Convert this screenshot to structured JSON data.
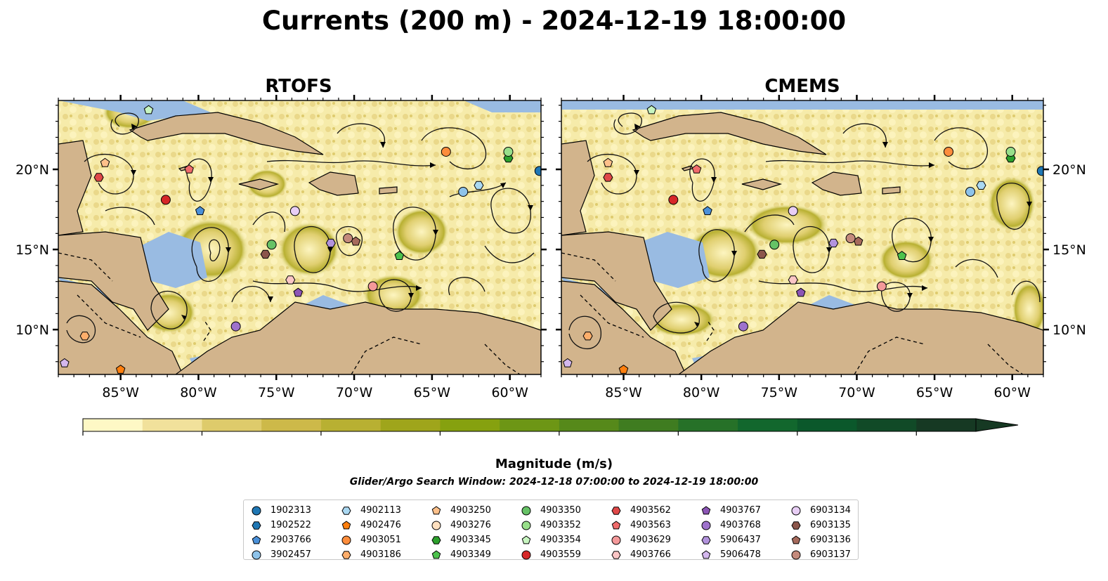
{
  "title": "Currents (200 m) - 2024-12-19 18:00:00",
  "panels": [
    {
      "title": "RTOFS"
    },
    {
      "title": "CMEMS"
    }
  ],
  "lon_ticks": [
    "85°W",
    "80°W",
    "75°W",
    "70°W",
    "65°W",
    "60°W"
  ],
  "lat_ticks": [
    "20°N",
    "15°N",
    "10°N"
  ],
  "extent": {
    "lon_min": -89,
    "lon_max": -58,
    "lat_min": 7.2,
    "lat_max": 24.3
  },
  "colors": {
    "ocean_low": "#fdf5c0",
    "land": "#d2b48c",
    "shelf": "#99bbe2"
  },
  "colorbar": {
    "label": "Magnitude (m/s)",
    "ticks": [
      "0.0",
      "0.2",
      "0.4",
      "0.6",
      "0.8",
      "1.0",
      "1.2",
      "1.4"
    ],
    "min": 0,
    "max": 1.5,
    "step": 0.1,
    "colors": [
      "#fef8c5",
      "#f1e19b",
      "#decb6b",
      "#cdb949",
      "#b8b032",
      "#9fa51b",
      "#86a10f",
      "#6d9615",
      "#56891a",
      "#3f7c20",
      "#267128",
      "#12672d",
      "#0b582b",
      "#114a27",
      "#163923"
    ]
  },
  "search_window": "Glider/Argo Search Window: 2024-12-18 07:00:00 to 2024-12-19 18:00:00",
  "floats": [
    {
      "id": "1902313",
      "marker": "circle",
      "color": "#1f77b4",
      "rtofs": [
        -58.1,
        19.9
      ],
      "cmems": [
        -58.1,
        19.9
      ]
    },
    {
      "id": "1902522",
      "marker": "hexagon",
      "color": "#1f77b4"
    },
    {
      "id": "2903766",
      "marker": "pentagon",
      "color": "#4a90d9",
      "rtofs": [
        -79.9,
        17.4
      ],
      "cmems": [
        -79.6,
        17.4
      ]
    },
    {
      "id": "3902457",
      "marker": "circle",
      "color": "#8ec3ea",
      "rtofs": [
        -63.0,
        18.6
      ],
      "cmems": [
        -62.7,
        18.6
      ]
    },
    {
      "id": "4902113",
      "marker": "hexagon",
      "color": "#aad8f2",
      "rtofs": [
        -62.0,
        19.0
      ],
      "cmems": [
        -62.0,
        19.0
      ]
    },
    {
      "id": "4902476",
      "marker": "pentagon",
      "color": "#ff7f0e",
      "rtofs": [
        -85.0,
        7.5
      ],
      "cmems": [
        -85.0,
        7.5
      ]
    },
    {
      "id": "4903051",
      "marker": "circle",
      "color": "#fd8d3c",
      "rtofs": [
        -64.1,
        21.1
      ],
      "cmems": [
        -64.1,
        21.1
      ]
    },
    {
      "id": "4903186",
      "marker": "hexagon",
      "color": "#fdae6b",
      "rtofs": [
        -87.3,
        9.6
      ],
      "cmems": [
        -87.3,
        9.6
      ]
    },
    {
      "id": "4903250",
      "marker": "pentagon",
      "color": "#fdc08a",
      "rtofs": [
        -86.0,
        20.4
      ],
      "cmems": [
        -86.0,
        20.4
      ]
    },
    {
      "id": "4903276",
      "marker": "circle",
      "color": "#fee0c0"
    },
    {
      "id": "4903345",
      "marker": "hexagon",
      "color": "#2ca02c",
      "rtofs": [
        -60.1,
        20.7
      ],
      "cmems": [
        -60.1,
        20.7
      ]
    },
    {
      "id": "4903349",
      "marker": "pentagon",
      "color": "#4cc24c",
      "rtofs": [
        -67.1,
        14.6
      ],
      "cmems": [
        -67.1,
        14.6
      ]
    },
    {
      "id": "4903350",
      "marker": "circle",
      "color": "#66c266",
      "rtofs": [
        -75.3,
        15.3
      ],
      "cmems": [
        -75.3,
        15.3
      ]
    },
    {
      "id": "4903352",
      "marker": "circle",
      "color": "#98df8a",
      "rtofs": [
        -60.1,
        21.1
      ],
      "cmems": [
        -60.1,
        21.1
      ]
    },
    {
      "id": "4903354",
      "marker": "pentagon",
      "color": "#c7f5c0",
      "rtofs": [
        -83.2,
        23.7
      ],
      "cmems": [
        -83.2,
        23.7
      ]
    },
    {
      "id": "4903559",
      "marker": "circle",
      "color": "#d62728",
      "rtofs": [
        -82.1,
        18.1
      ],
      "cmems": [
        -81.8,
        18.1
      ]
    },
    {
      "id": "4903562",
      "marker": "hexagon",
      "color": "#e04848",
      "rtofs": [
        -86.4,
        19.5
      ],
      "cmems": [
        -86.0,
        19.5
      ]
    },
    {
      "id": "4903563",
      "marker": "pentagon",
      "color": "#f06b6b",
      "rtofs": [
        -80.6,
        20.0
      ],
      "cmems": [
        -80.3,
        20.0
      ]
    },
    {
      "id": "4903629",
      "marker": "circle",
      "color": "#f4999a",
      "rtofs": [
        -68.8,
        12.7
      ],
      "cmems": [
        -68.4,
        12.7
      ]
    },
    {
      "id": "4903766",
      "marker": "hexagon",
      "color": "#fbc6c6",
      "rtofs": [
        -74.1,
        13.1
      ],
      "cmems": [
        -74.1,
        13.1
      ]
    },
    {
      "id": "4903767",
      "marker": "pentagon",
      "color": "#8c55b5",
      "rtofs": [
        -73.6,
        12.3
      ],
      "cmems": [
        -73.6,
        12.3
      ]
    },
    {
      "id": "4903768",
      "marker": "circle",
      "color": "#9e72cc",
      "rtofs": [
        -77.6,
        10.2
      ],
      "cmems": [
        -77.3,
        10.2
      ]
    },
    {
      "id": "5906437",
      "marker": "hexagon",
      "color": "#b293dd",
      "rtofs": [
        -71.5,
        15.4
      ],
      "cmems": [
        -71.5,
        15.4
      ]
    },
    {
      "id": "5906478",
      "marker": "pentagon",
      "color": "#d4b8ee",
      "rtofs": [
        -88.6,
        7.9
      ],
      "cmems": [
        -88.6,
        7.9
      ]
    },
    {
      "id": "6903134",
      "marker": "circle",
      "color": "#e8cef5",
      "rtofs": [
        -73.8,
        17.4
      ],
      "cmems": [
        -74.1,
        17.4
      ]
    },
    {
      "id": "6903135",
      "marker": "hexagon",
      "color": "#8c564b",
      "rtofs": [
        -75.7,
        14.7
      ],
      "cmems": [
        -76.1,
        14.7
      ]
    },
    {
      "id": "6903136",
      "marker": "pentagon",
      "color": "#a66a5c",
      "rtofs": [
        -69.9,
        15.5
      ],
      "cmems": [
        -69.9,
        15.5
      ]
    },
    {
      "id": "6903137",
      "marker": "circle",
      "color": "#c48a7c",
      "rtofs": [
        -70.4,
        15.7
      ],
      "cmems": [
        -70.4,
        15.7
      ]
    }
  ]
}
